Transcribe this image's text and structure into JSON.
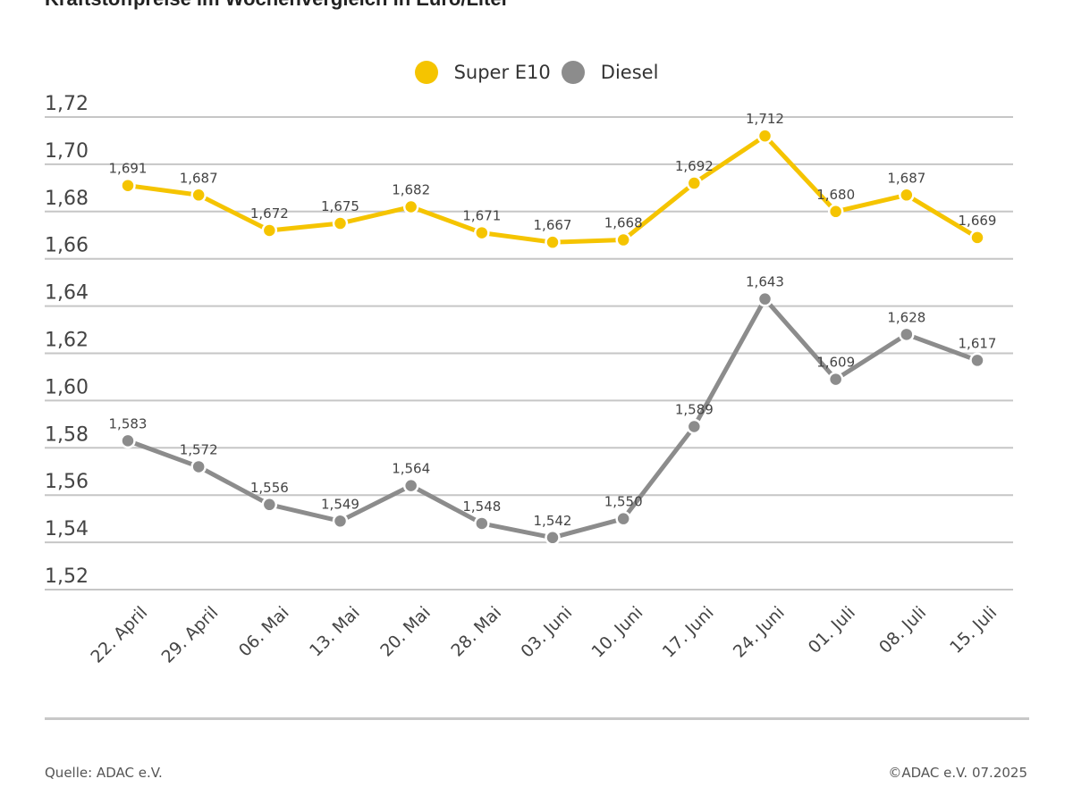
{
  "title": "Kraftstoffpreise im Wochenvergleich in Euro/Liter",
  "footer": {
    "source": "Quelle: ADAC e.V.",
    "copyright": "©ADAC e.V. 07.2025"
  },
  "chart_data": {
    "type": "line",
    "title": "Kraftstoffpreise im Wochenvergleich in Euro/Liter",
    "xlabel": "",
    "ylabel": "",
    "ylim": [
      1.52,
      1.72
    ],
    "yticks": [
      1.72,
      1.7,
      1.68,
      1.66,
      1.64,
      1.62,
      1.6,
      1.58,
      1.56,
      1.54,
      1.52
    ],
    "ytick_labels": [
      "1,72",
      "1,70",
      "1,68",
      "1,66",
      "1,64",
      "1,62",
      "1,60",
      "1,58",
      "1,56",
      "1,54",
      "1,52"
    ],
    "grid": true,
    "legend_position": "top-center",
    "categories": [
      "22. April",
      "29. April",
      "06. Mai",
      "13. Mai",
      "20. Mai",
      "28. Mai",
      "03. Juni",
      "10. Juni",
      "17. Juni",
      "24. Juni",
      "01. Juli",
      "08. Juli",
      "15. Juli"
    ],
    "series": [
      {
        "name": "Super E10",
        "color": "#f5c400",
        "values": [
          1.691,
          1.687,
          1.672,
          1.675,
          1.682,
          1.671,
          1.667,
          1.668,
          1.692,
          1.712,
          1.68,
          1.687,
          1.669
        ],
        "labels": [
          "1,691",
          "1,687",
          "1,672",
          "1,675",
          "1,682",
          "1,671",
          "1,667",
          "1,668",
          "1,692",
          "1,712",
          "1,680",
          "1,687",
          "1,669"
        ]
      },
      {
        "name": "Diesel",
        "color": "#8c8c8c",
        "values": [
          1.583,
          1.572,
          1.556,
          1.549,
          1.564,
          1.548,
          1.542,
          1.55,
          1.589,
          1.643,
          1.609,
          1.628,
          1.617
        ],
        "labels": [
          "1,583",
          "1,572",
          "1,556",
          "1,549",
          "1,564",
          "1,548",
          "1,542",
          "1,550",
          "1,589",
          "1,643",
          "1,609",
          "1,628",
          "1,617"
        ]
      }
    ]
  }
}
